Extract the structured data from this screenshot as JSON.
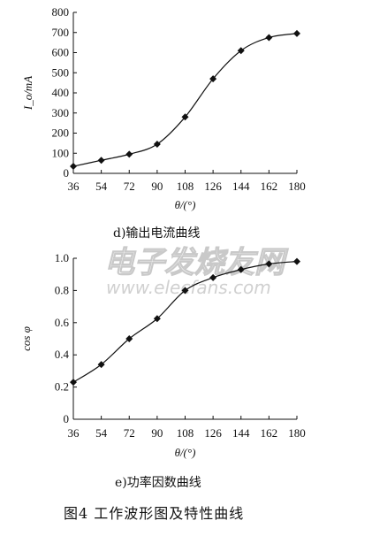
{
  "chart_data": [
    {
      "type": "line",
      "subtitle": "d)输出电流曲线",
      "ylabel": "I_o/mA",
      "xlabel": "θ/(°)",
      "x": [
        36,
        54,
        72,
        90,
        108,
        126,
        144,
        162,
        180
      ],
      "xlim": [
        36,
        180
      ],
      "ylim": [
        0,
        800
      ],
      "yticks": [
        "0",
        "100",
        "200",
        "300",
        "400",
        "500",
        "600",
        "700",
        "800"
      ],
      "grid": false,
      "marker": "diamond",
      "series": [
        {
          "values": [
            35,
            65,
            95,
            145,
            280,
            470,
            610,
            675,
            695
          ]
        }
      ]
    },
    {
      "type": "line",
      "subtitle": "e)功率因数曲线",
      "ylabel": "cos φ",
      "xlabel": "θ/(°)",
      "x": [
        36,
        54,
        72,
        90,
        108,
        126,
        144,
        162,
        180
      ],
      "xlim": [
        36,
        180
      ],
      "ylim": [
        0,
        1.0
      ],
      "yticks": [
        "0",
        "0.2",
        "0.4",
        "0.6",
        "0.8",
        "1.0"
      ],
      "grid": false,
      "marker": "diamond",
      "series": [
        {
          "values": [
            0.23,
            0.34,
            0.5,
            0.625,
            0.8,
            0.88,
            0.93,
            0.965,
            0.98
          ]
        }
      ]
    }
  ],
  "figure_caption": "图4  工作波形图及特性曲线",
  "watermark": {
    "cn": "电子发烧友网",
    "en": "www.elecfans.com"
  },
  "colors": {
    "ink": "#111111",
    "watermark": "#c9c9c9"
  }
}
